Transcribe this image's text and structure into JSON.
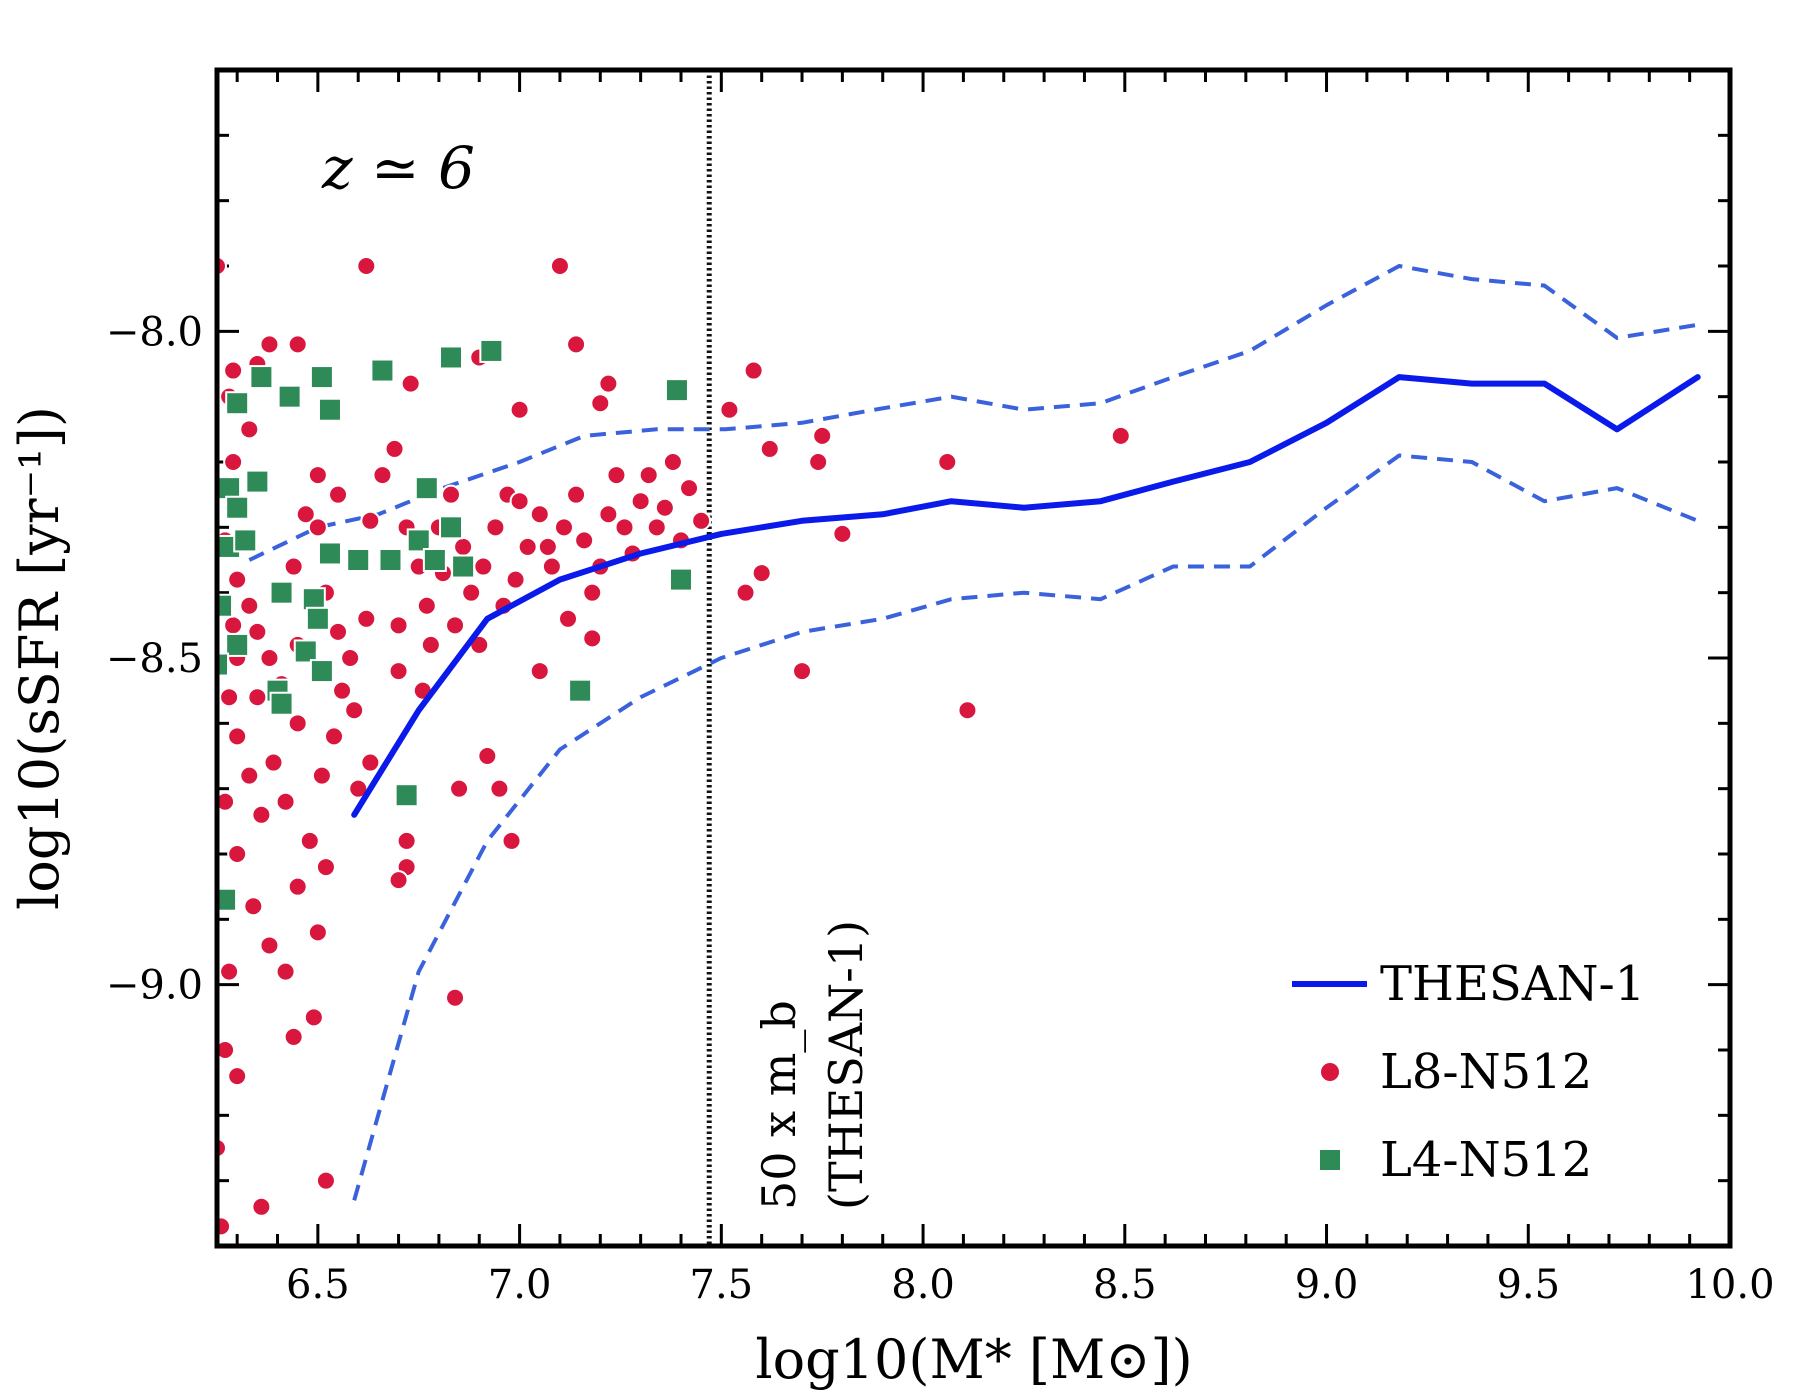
{
  "chart_data": {
    "type": "scatter",
    "title": "",
    "annotation": "z ≃ 6",
    "xlabel": "log10(M* [M⊙])",
    "ylabel": "log10(sSFR [yr⁻¹])",
    "xlim": [
      6.25,
      10.0
    ],
    "ylim": [
      -9.4,
      -7.6
    ],
    "xticks": [
      "6.5",
      "7.0",
      "7.5",
      "8.0",
      "8.5",
      "9.0",
      "9.5",
      "10.0"
    ],
    "yticks": [
      "−8.0",
      "−8.5",
      "−9.0"
    ],
    "vline": {
      "x": 7.47,
      "label_line1": "50 x m_b",
      "label_line2": "(THESAN-1)"
    },
    "legend": {
      "position": "lower-right",
      "entries": [
        "THESAN-1",
        "L8-N512",
        "L4-N512"
      ]
    },
    "colors": {
      "thesan": "#0a1aeb",
      "thesan_band": "#3a62dc",
      "l8": "#d9163d",
      "l4": "#2e8b57"
    },
    "series": [
      {
        "name": "THESAN-1",
        "style": "line",
        "x": [
          6.59,
          6.75,
          6.92,
          7.1,
          7.3,
          7.5,
          7.7,
          7.9,
          8.07,
          8.25,
          8.44,
          8.62,
          8.81,
          9.0,
          9.18,
          9.36,
          9.54,
          9.72,
          9.92
        ],
        "y": [
          -8.74,
          -8.58,
          -8.44,
          -8.38,
          -8.34,
          -8.31,
          -8.29,
          -8.28,
          -8.26,
          -8.27,
          -8.26,
          -8.23,
          -8.2,
          -8.14,
          -8.07,
          -8.08,
          -8.08,
          -8.15,
          -8.07
        ]
      },
      {
        "name": "THESAN-1 upper",
        "style": "dashed",
        "x": [
          6.33,
          6.5,
          6.65,
          6.81,
          7.0,
          7.16,
          7.34,
          7.51,
          7.7,
          7.88,
          8.07,
          8.25,
          8.44,
          8.62,
          8.81,
          9.0,
          9.18,
          9.36,
          9.54,
          9.72,
          9.92
        ],
        "y": [
          -8.35,
          -8.3,
          -8.28,
          -8.24,
          -8.2,
          -8.16,
          -8.15,
          -8.15,
          -8.14,
          -8.12,
          -8.1,
          -8.12,
          -8.11,
          -8.07,
          -8.03,
          -7.96,
          -7.9,
          -7.92,
          -7.93,
          -8.01,
          -7.99
        ]
      },
      {
        "name": "THESAN-1 lower",
        "style": "dashed",
        "x": [
          6.59,
          6.75,
          6.92,
          7.1,
          7.3,
          7.5,
          7.7,
          7.9,
          8.07,
          8.25,
          8.44,
          8.62,
          8.81,
          9.0,
          9.18,
          9.36,
          9.54,
          9.72,
          9.92
        ],
        "y": [
          -9.33,
          -8.98,
          -8.78,
          -8.64,
          -8.56,
          -8.5,
          -8.46,
          -8.44,
          -8.41,
          -8.4,
          -8.41,
          -8.36,
          -8.36,
          -8.27,
          -8.19,
          -8.2,
          -8.26,
          -8.24,
          -8.29
        ]
      },
      {
        "name": "L8-N512",
        "style": "circle",
        "points": [
          [
            6.25,
            -7.9
          ],
          [
            6.29,
            -8.06
          ],
          [
            6.35,
            -8.05
          ],
          [
            6.29,
            -8.2
          ],
          [
            6.33,
            -8.15
          ],
          [
            6.28,
            -8.1
          ],
          [
            6.38,
            -8.02
          ],
          [
            6.45,
            -8.02
          ],
          [
            6.62,
            -7.9
          ],
          [
            6.73,
            -8.08
          ],
          [
            6.9,
            -8.04
          ],
          [
            7.0,
            -8.12
          ],
          [
            7.1,
            -7.9
          ],
          [
            7.14,
            -8.02
          ],
          [
            7.2,
            -8.11
          ],
          [
            7.22,
            -8.08
          ],
          [
            7.58,
            -8.06
          ],
          [
            7.52,
            -8.12
          ],
          [
            7.62,
            -8.18
          ],
          [
            7.75,
            -8.16
          ],
          [
            7.74,
            -8.2
          ],
          [
            8.06,
            -8.2
          ],
          [
            8.49,
            -8.16
          ],
          [
            7.8,
            -8.31
          ],
          [
            7.56,
            -8.4
          ],
          [
            7.6,
            -8.37
          ],
          [
            7.7,
            -8.52
          ],
          [
            8.11,
            -8.58
          ],
          [
            6.24,
            -8.24
          ],
          [
            6.27,
            -8.32
          ],
          [
            6.3,
            -8.38
          ],
          [
            6.33,
            -8.42
          ],
          [
            6.35,
            -8.46
          ],
          [
            6.38,
            -8.5
          ],
          [
            6.41,
            -8.54
          ],
          [
            6.44,
            -8.36
          ],
          [
            6.47,
            -8.28
          ],
          [
            6.5,
            -8.3
          ],
          [
            6.52,
            -8.4
          ],
          [
            6.55,
            -8.46
          ],
          [
            6.58,
            -8.5
          ],
          [
            6.6,
            -8.35
          ],
          [
            6.63,
            -8.29
          ],
          [
            6.66,
            -8.22
          ],
          [
            6.69,
            -8.18
          ],
          [
            6.72,
            -8.3
          ],
          [
            6.75,
            -8.36
          ],
          [
            6.77,
            -8.42
          ],
          [
            6.8,
            -8.3
          ],
          [
            6.83,
            -8.25
          ],
          [
            6.86,
            -8.33
          ],
          [
            6.88,
            -8.4
          ],
          [
            6.91,
            -8.36
          ],
          [
            6.94,
            -8.3
          ],
          [
            6.96,
            -8.42
          ],
          [
            6.99,
            -8.38
          ],
          [
            7.02,
            -8.33
          ],
          [
            7.05,
            -8.28
          ],
          [
            7.08,
            -8.36
          ],
          [
            7.11,
            -8.3
          ],
          [
            7.14,
            -8.25
          ],
          [
            7.16,
            -8.32
          ],
          [
            7.18,
            -8.4
          ],
          [
            7.2,
            -8.36
          ],
          [
            7.22,
            -8.28
          ],
          [
            7.24,
            -8.22
          ],
          [
            7.26,
            -8.3
          ],
          [
            7.28,
            -8.34
          ],
          [
            7.3,
            -8.26
          ],
          [
            7.32,
            -8.22
          ],
          [
            7.34,
            -8.3
          ],
          [
            7.36,
            -8.27
          ],
          [
            7.38,
            -8.2
          ],
          [
            7.4,
            -8.32
          ],
          [
            7.42,
            -8.24
          ],
          [
            7.45,
            -8.29
          ],
          [
            7.12,
            -8.44
          ],
          [
            7.18,
            -8.47
          ],
          [
            6.3,
            -8.62
          ],
          [
            6.33,
            -8.68
          ],
          [
            6.36,
            -8.74
          ],
          [
            6.39,
            -8.66
          ],
          [
            6.42,
            -8.72
          ],
          [
            6.45,
            -8.6
          ],
          [
            6.48,
            -8.78
          ],
          [
            6.51,
            -8.68
          ],
          [
            6.54,
            -8.62
          ],
          [
            6.6,
            -8.7
          ],
          [
            6.63,
            -8.66
          ],
          [
            6.3,
            -8.8
          ],
          [
            6.34,
            -8.88
          ],
          [
            6.38,
            -8.94
          ],
          [
            6.42,
            -8.98
          ],
          [
            6.45,
            -8.85
          ],
          [
            6.5,
            -8.92
          ],
          [
            6.52,
            -8.82
          ],
          [
            6.28,
            -8.98
          ],
          [
            6.27,
            -9.1
          ],
          [
            6.3,
            -9.14
          ],
          [
            6.36,
            -9.34
          ],
          [
            6.52,
            -9.3
          ],
          [
            6.44,
            -9.08
          ],
          [
            6.49,
            -9.05
          ],
          [
            6.72,
            -8.78
          ],
          [
            6.72,
            -8.82
          ],
          [
            6.7,
            -8.84
          ],
          [
            6.84,
            -9.02
          ],
          [
            6.85,
            -8.7
          ],
          [
            6.92,
            -8.65
          ],
          [
            6.95,
            -8.7
          ],
          [
            6.98,
            -8.78
          ],
          [
            6.76,
            -8.55
          ],
          [
            6.7,
            -8.52
          ],
          [
            7.05,
            -8.52
          ],
          [
            6.25,
            -9.25
          ],
          [
            6.26,
            -9.37
          ],
          [
            6.27,
            -8.72
          ],
          [
            6.28,
            -8.56
          ],
          [
            6.3,
            -8.5
          ],
          [
            6.29,
            -8.45
          ],
          [
            6.56,
            -8.55
          ],
          [
            6.59,
            -8.58
          ],
          [
            6.35,
            -8.56
          ],
          [
            6.45,
            -8.48
          ],
          [
            6.5,
            -8.22
          ],
          [
            6.55,
            -8.25
          ],
          [
            6.62,
            -8.44
          ],
          [
            6.7,
            -8.45
          ],
          [
            6.78,
            -8.48
          ],
          [
            6.81,
            -8.37
          ],
          [
            6.84,
            -8.45
          ],
          [
            6.97,
            -8.25
          ],
          [
            7.0,
            -8.26
          ],
          [
            7.07,
            -8.33
          ],
          [
            6.9,
            -8.48
          ]
        ]
      },
      {
        "name": "L4-N512",
        "style": "square",
        "points": [
          [
            6.36,
            -8.07
          ],
          [
            6.3,
            -8.11
          ],
          [
            6.43,
            -8.1
          ],
          [
            6.51,
            -8.07
          ],
          [
            6.53,
            -8.12
          ],
          [
            6.66,
            -8.06
          ],
          [
            6.83,
            -8.04
          ],
          [
            6.93,
            -8.03
          ],
          [
            7.39,
            -8.09
          ],
          [
            6.28,
            -8.24
          ],
          [
            6.35,
            -8.23
          ],
          [
            6.3,
            -8.27
          ],
          [
            6.28,
            -8.33
          ],
          [
            6.32,
            -8.32
          ],
          [
            6.53,
            -8.34
          ],
          [
            6.6,
            -8.35
          ],
          [
            6.68,
            -8.35
          ],
          [
            6.75,
            -8.32
          ],
          [
            6.77,
            -8.24
          ],
          [
            6.79,
            -8.35
          ],
          [
            6.83,
            -8.3
          ],
          [
            6.86,
            -8.36
          ],
          [
            7.4,
            -8.38
          ],
          [
            6.26,
            -8.42
          ],
          [
            6.41,
            -8.4
          ],
          [
            6.49,
            -8.41
          ],
          [
            6.5,
            -8.44
          ],
          [
            6.3,
            -8.48
          ],
          [
            6.47,
            -8.49
          ],
          [
            6.51,
            -8.52
          ],
          [
            6.4,
            -8.55
          ],
          [
            6.41,
            -8.57
          ],
          [
            6.25,
            -8.51
          ],
          [
            7.15,
            -8.55
          ],
          [
            6.72,
            -8.71
          ],
          [
            6.27,
            -8.87
          ]
        ]
      }
    ]
  }
}
